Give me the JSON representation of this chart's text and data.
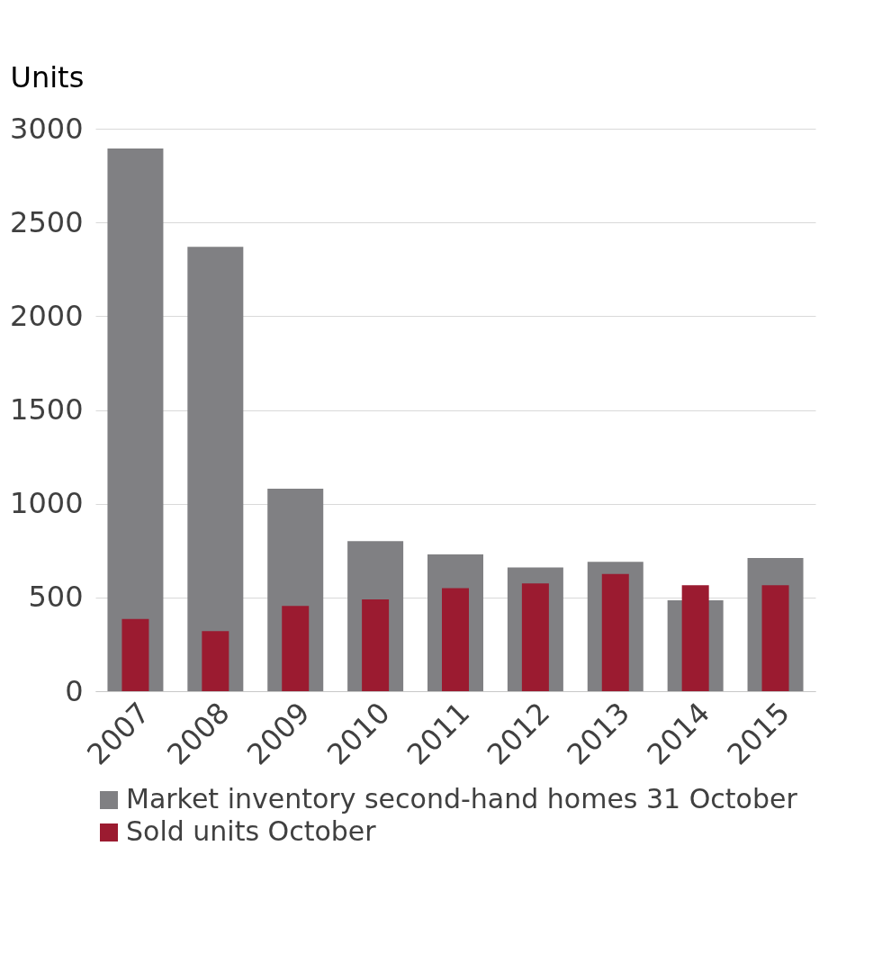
{
  "chart_data": {
    "type": "bar",
    "ylabel": "Units",
    "categories": [
      "2007",
      "2008",
      "2009",
      "2010",
      "2011",
      "2012",
      "2013",
      "2014",
      "2015"
    ],
    "series": [
      {
        "name": "Market inventory second-hand homes 31 October",
        "color": "#808083",
        "values": [
          2895,
          2370,
          1080,
          800,
          730,
          660,
          690,
          485,
          710
        ]
      },
      {
        "name": "Sold units October",
        "color": "#9b1b30",
        "values": [
          385,
          320,
          455,
          490,
          550,
          575,
          625,
          565,
          565
        ]
      }
    ],
    "ylim": [
      0,
      3000
    ],
    "yticks": [
      0,
      500,
      1000,
      1500,
      2000,
      2500,
      3000
    ],
    "grid": "y",
    "legend": "bottom"
  }
}
